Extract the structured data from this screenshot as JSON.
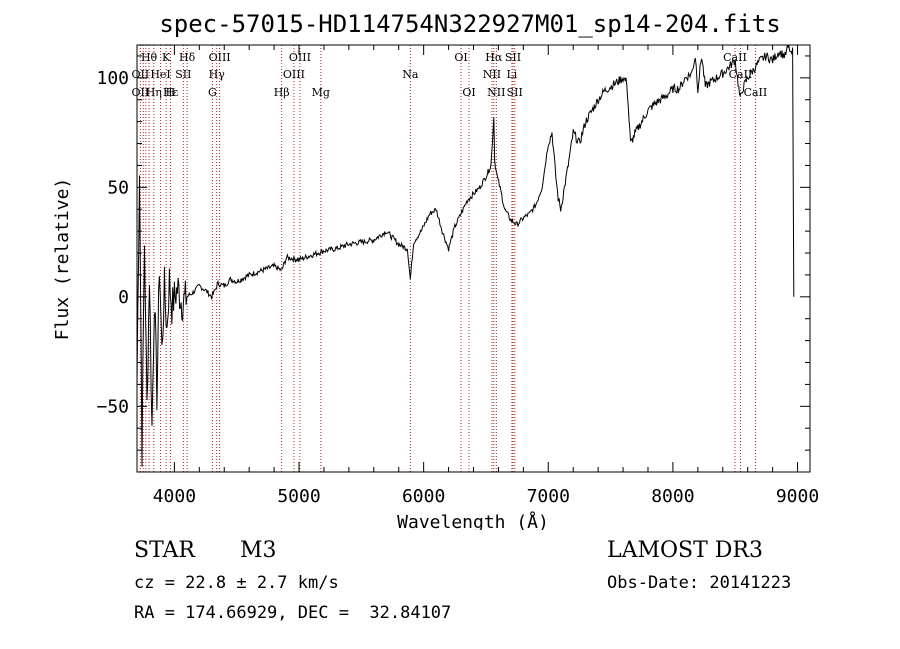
{
  "chart_data": {
    "type": "line",
    "title": "spec-57015-HD114754N322927M01_sp14-204.fits",
    "xlabel": "Wavelength (Å)",
    "ylabel": "Flux (relative)",
    "xlim": [
      3700,
      9100
    ],
    "ylim": [
      -80,
      115
    ],
    "xticks": [
      4000,
      5000,
      6000,
      7000,
      8000,
      9000
    ],
    "yticks": [
      -50,
      0,
      50,
      100
    ],
    "tick_labels_x": [
      "4000",
      "5000",
      "6000",
      "7000",
      "8000",
      "9000"
    ],
    "tick_labels_y": [
      "−50",
      "0",
      "50",
      "100"
    ],
    "grid": false,
    "series": [
      {
        "name": "spectrum",
        "x": [
          3700,
          3720,
          3740,
          3760,
          3780,
          3800,
          3820,
          3840,
          3860,
          3880,
          3900,
          3920,
          3940,
          3960,
          3980,
          4000,
          4030,
          4060,
          4100,
          4150,
          4200,
          4250,
          4300,
          4350,
          4400,
          4450,
          4500,
          4600,
          4700,
          4800,
          4860,
          4900,
          5000,
          5100,
          5200,
          5300,
          5400,
          5500,
          5600,
          5700,
          5800,
          5870,
          5893,
          5920,
          5980,
          6050,
          6100,
          6150,
          6180,
          6200,
          6250,
          6300,
          6350,
          6400,
          6450,
          6500,
          6540,
          6563,
          6570,
          6590,
          6620,
          6650,
          6700,
          6750,
          6800,
          6850,
          6900,
          6950,
          7000,
          7030,
          7060,
          7080,
          7100,
          7130,
          7160,
          7200,
          7250,
          7300,
          7350,
          7400,
          7450,
          7500,
          7550,
          7600,
          7630,
          7660,
          7700,
          7750,
          7800,
          7850,
          7900,
          7950,
          8000,
          8050,
          8100,
          8150,
          8180,
          8200,
          8230,
          8260,
          8300,
          8350,
          8400,
          8450,
          8500,
          8540,
          8560,
          8600,
          8650,
          8700,
          8750,
          8800,
          8850,
          8900,
          8930,
          8950,
          8960,
          8970
        ],
        "values": [
          -40,
          60,
          -70,
          25,
          -50,
          10,
          -60,
          0,
          -45,
          15,
          -25,
          5,
          -15,
          8,
          -5,
          0,
          4,
          -3,
          0,
          2,
          5,
          3,
          0,
          6,
          5,
          8,
          7,
          10,
          12,
          14,
          12,
          18,
          17,
          19,
          21,
          22,
          24,
          25,
          26,
          30,
          24,
          22,
          8,
          25,
          30,
          38,
          40,
          30,
          25,
          22,
          32,
          38,
          44,
          47,
          50,
          55,
          60,
          82,
          62,
          55,
          48,
          40,
          35,
          33,
          36,
          38,
          42,
          50,
          70,
          75,
          55,
          45,
          40,
          50,
          60,
          75,
          70,
          80,
          85,
          90,
          94,
          96,
          98,
          100,
          98,
          70,
          75,
          80,
          85,
          88,
          90,
          92,
          95,
          95,
          100,
          102,
          110,
          95,
          110,
          96,
          98,
          100,
          102,
          105,
          108,
          90,
          95,
          100,
          104,
          108,
          110,
          108,
          112,
          110,
          115,
          110,
          112,
          0
        ]
      }
    ],
    "annotations": [
      {
        "label": "Hθ",
        "wavelength": 3797,
        "row": 1
      },
      {
        "label": "K",
        "wavelength": 3934,
        "row": 1
      },
      {
        "label": "Hδ",
        "wavelength": 4102,
        "row": 1
      },
      {
        "label": "OIII",
        "wavelength": 4363,
        "row": 1
      },
      {
        "label": "OIII",
        "wavelength": 5007,
        "row": 1
      },
      {
        "label": "OI",
        "wavelength": 6300,
        "row": 1
      },
      {
        "label": "Hα",
        "wavelength": 6563,
        "row": 1
      },
      {
        "label": "SII",
        "wavelength": 6717,
        "row": 1
      },
      {
        "label": "CaII",
        "wavelength": 8498,
        "row": 1
      },
      {
        "label": "OII",
        "wavelength": 3727,
        "row": 2
      },
      {
        "label": "HeI",
        "wavelength": 3889,
        "row": 2
      },
      {
        "label": "SII",
        "wavelength": 4072,
        "row": 2
      },
      {
        "label": "Hγ",
        "wavelength": 4340,
        "row": 2
      },
      {
        "label": "OIII",
        "wavelength": 4959,
        "row": 2
      },
      {
        "label": "Na",
        "wavelength": 5893,
        "row": 2
      },
      {
        "label": "NII",
        "wavelength": 6548,
        "row": 2
      },
      {
        "label": "Li",
        "wavelength": 6708,
        "row": 2
      },
      {
        "label": "CaII",
        "wavelength": 8542,
        "row": 2
      },
      {
        "label": "OII",
        "wavelength": 3727,
        "row": 3
      },
      {
        "label": "Hε",
        "wavelength": 3970,
        "row": 3
      },
      {
        "label": "Hη",
        "wavelength": 3835,
        "row": 3
      },
      {
        "label": "H",
        "wavelength": 3968,
        "row": 3
      },
      {
        "label": "G",
        "wavelength": 4305,
        "row": 3
      },
      {
        "label": "Hβ",
        "wavelength": 4861,
        "row": 3
      },
      {
        "label": "Mg",
        "wavelength": 5175,
        "row": 3
      },
      {
        "label": "OI",
        "wavelength": 6364,
        "row": 3
      },
      {
        "label": "NII",
        "wavelength": 6583,
        "row": 3
      },
      {
        "label": "SII",
        "wavelength": 6731,
        "row": 3
      },
      {
        "label": "CaII",
        "wavelength": 8662,
        "row": 3
      }
    ],
    "line_markers": [
      3727,
      3750,
      3771,
      3797,
      3835,
      3889,
      3934,
      3968,
      4072,
      4102,
      4305,
      4340,
      4363,
      4861,
      4959,
      5007,
      5175,
      5893,
      6300,
      6364,
      6548,
      6563,
      6583,
      6708,
      6717,
      6731,
      8498,
      8542,
      8662
    ]
  },
  "info": {
    "object_class": "STAR",
    "subclass": "M3",
    "survey": "LAMOST DR3",
    "redshift": "cz = 22.8 ± 2.7 km/s",
    "obs_date": "Obs-Date: 20141223",
    "coords": "RA = 174.66929, DEC =  32.84107"
  },
  "colors": {
    "line": "#000000",
    "marker": "#b22222",
    "background": "#ffffff"
  }
}
